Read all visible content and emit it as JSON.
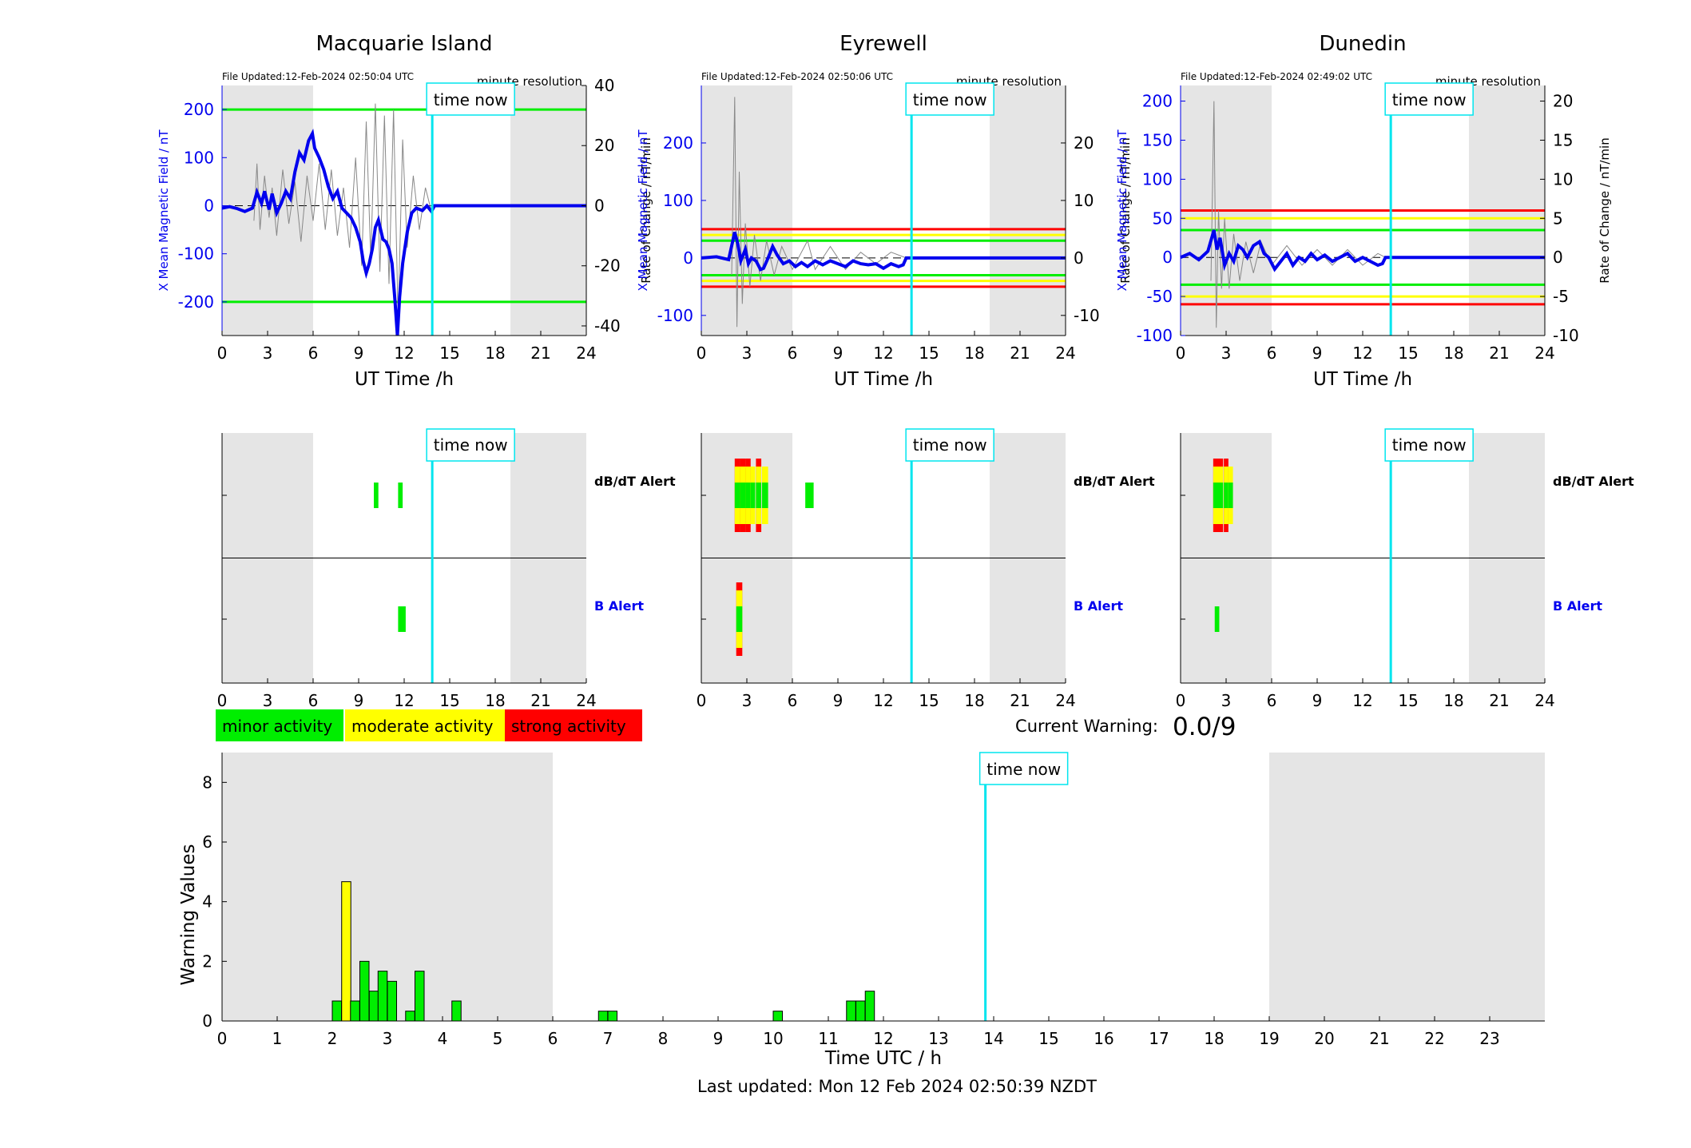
{
  "time_now_label": "time now",
  "time_now_hour": 13.85,
  "ut_axis_ticks": [
    0,
    3,
    6,
    9,
    12,
    15,
    18,
    21,
    24
  ],
  "stations": [
    {
      "name": "Macquarie Island",
      "file_updated": "File Updated:12-Feb-2024 02:50:04 UTC",
      "resolution": "minute resolution",
      "ylabel_left": "X Mean Magnetic Field / nT",
      "ylabel_right": "Rate of Change / nT/min",
      "xlabel": "UT Time /h",
      "ylim_left": [
        -270,
        250
      ],
      "ylim_right": [
        -43.2,
        40
      ],
      "left_ticks": [
        -200,
        -100,
        0,
        100,
        200
      ],
      "right_ticks": [
        -40,
        -20,
        0,
        20,
        40
      ],
      "shaded_hours": [
        [
          0,
          6
        ],
        [
          19,
          24
        ]
      ],
      "threshold_lines": [
        {
          "value": 200,
          "color": "#00ee00"
        },
        {
          "value": -200,
          "color": "#00ee00"
        }
      ],
      "field_series": [
        [
          0,
          -5
        ],
        [
          0.5,
          -2
        ],
        [
          1,
          -6
        ],
        [
          1.5,
          -12
        ],
        [
          2,
          -5
        ],
        [
          2.3,
          28
        ],
        [
          2.6,
          5
        ],
        [
          2.8,
          30
        ],
        [
          3.1,
          -8
        ],
        [
          3.3,
          25
        ],
        [
          3.6,
          -15
        ],
        [
          3.9,
          5
        ],
        [
          4.2,
          30
        ],
        [
          4.5,
          15
        ],
        [
          4.8,
          70
        ],
        [
          5.1,
          110
        ],
        [
          5.4,
          95
        ],
        [
          5.7,
          135
        ],
        [
          5.95,
          150
        ],
        [
          6.1,
          120
        ],
        [
          6.4,
          100
        ],
        [
          6.7,
          75
        ],
        [
          7,
          40
        ],
        [
          7.3,
          15
        ],
        [
          7.6,
          30
        ],
        [
          7.9,
          -5
        ],
        [
          8.2,
          -15
        ],
        [
          8.5,
          -25
        ],
        [
          8.8,
          -45
        ],
        [
          9.1,
          -75
        ],
        [
          9.3,
          -115
        ],
        [
          9.5,
          -140
        ],
        [
          9.7,
          -120
        ],
        [
          9.9,
          -90
        ],
        [
          10.1,
          -45
        ],
        [
          10.3,
          -30
        ],
        [
          10.6,
          -70
        ],
        [
          10.8,
          -75
        ],
        [
          11,
          -90
        ],
        [
          11.2,
          -120
        ],
        [
          11.4,
          -200
        ],
        [
          11.55,
          -270
        ],
        [
          11.7,
          -190
        ],
        [
          11.9,
          -120
        ],
        [
          12.2,
          -55
        ],
        [
          12.5,
          -15
        ],
        [
          12.8,
          -5
        ],
        [
          13.2,
          -10
        ],
        [
          13.5,
          0
        ],
        [
          13.8,
          -12
        ],
        [
          14,
          0
        ],
        [
          24,
          0
        ]
      ],
      "rate_series": [
        [
          2.1,
          -5
        ],
        [
          2.3,
          14
        ],
        [
          2.5,
          -8
        ],
        [
          2.8,
          10
        ],
        [
          3.1,
          -4
        ],
        [
          3.3,
          6
        ],
        [
          3.6,
          -10
        ],
        [
          4,
          12
        ],
        [
          4.4,
          -6
        ],
        [
          4.8,
          8
        ],
        [
          5.2,
          -12
        ],
        [
          5.6,
          10
        ],
        [
          6,
          -5
        ],
        [
          6.4,
          14
        ],
        [
          6.8,
          -8
        ],
        [
          7.2,
          12
        ],
        [
          7.6,
          -10
        ],
        [
          8,
          6
        ],
        [
          8.4,
          -14
        ],
        [
          8.8,
          16
        ],
        [
          9.2,
          -20
        ],
        [
          9.5,
          28
        ],
        [
          9.8,
          -18
        ],
        [
          10.1,
          34
        ],
        [
          10.4,
          -22
        ],
        [
          10.7,
          30
        ],
        [
          11,
          -26
        ],
        [
          11.3,
          32
        ],
        [
          11.6,
          -38
        ],
        [
          11.9,
          22
        ],
        [
          12.2,
          -14
        ],
        [
          12.6,
          10
        ],
        [
          13,
          -8
        ],
        [
          13.4,
          6
        ],
        [
          13.8,
          -2
        ]
      ],
      "alerts": {
        "dbdt": [
          {
            "hour": 10.0,
            "width": 0.3,
            "levels": [
              "minor"
            ]
          },
          {
            "hour": 11.6,
            "width": 0.3,
            "levels": [
              "minor"
            ]
          }
        ],
        "b": [
          {
            "hour": 11.6,
            "width": 0.5,
            "levels": [
              "minor"
            ]
          }
        ]
      },
      "alert_labels": {
        "dbdt": "dB/dT Alert",
        "b": "B Alert"
      }
    },
    {
      "name": "Eyrewell",
      "file_updated": "File Updated:12-Feb-2024 02:50:06 UTC",
      "resolution": "minute resolution",
      "ylabel_left": "X Mean Magnetic Field / nT",
      "ylabel_right": "Rate of Change / nT/min",
      "xlabel": "UT Time /h",
      "ylim_left": [
        -135,
        300
      ],
      "ylim_right": [
        -13.5,
        30
      ],
      "left_ticks": [
        -100,
        0,
        100,
        200
      ],
      "right_ticks": [
        -10,
        0,
        10,
        20
      ],
      "shaded_hours": [
        [
          0,
          6
        ],
        [
          19,
          24
        ]
      ],
      "threshold_lines": [
        {
          "value": 50,
          "color": "#ff0000"
        },
        {
          "value": 40,
          "color": "#ffff00"
        },
        {
          "value": 30,
          "color": "#00ee00"
        },
        {
          "value": -30,
          "color": "#00ee00"
        },
        {
          "value": -40,
          "color": "#ffff00"
        },
        {
          "value": -50,
          "color": "#ff0000"
        }
      ],
      "field_series": [
        [
          0,
          0
        ],
        [
          1,
          2
        ],
        [
          1.8,
          -3
        ],
        [
          2.2,
          45
        ],
        [
          2.4,
          25
        ],
        [
          2.6,
          -5
        ],
        [
          2.9,
          15
        ],
        [
          3.1,
          -10
        ],
        [
          3.3,
          0
        ],
        [
          3.6,
          -5
        ],
        [
          3.9,
          -20
        ],
        [
          4.1,
          -18
        ],
        [
          4.4,
          0
        ],
        [
          4.7,
          20
        ],
        [
          5,
          5
        ],
        [
          5.4,
          -10
        ],
        [
          5.8,
          -5
        ],
        [
          6.2,
          -15
        ],
        [
          6.6,
          -8
        ],
        [
          7,
          -15
        ],
        [
          7.5,
          -5
        ],
        [
          8,
          -12
        ],
        [
          8.5,
          -5
        ],
        [
          9,
          -10
        ],
        [
          9.5,
          -15
        ],
        [
          10,
          -5
        ],
        [
          10.5,
          -10
        ],
        [
          11,
          -12
        ],
        [
          11.5,
          -10
        ],
        [
          12,
          -18
        ],
        [
          12.5,
          -10
        ],
        [
          13,
          -15
        ],
        [
          13.3,
          -12
        ],
        [
          13.5,
          0
        ],
        [
          24,
          0
        ]
      ],
      "rate_series": [
        [
          2.0,
          -3
        ],
        [
          2.2,
          28
        ],
        [
          2.35,
          -12
        ],
        [
          2.5,
          15
        ],
        [
          2.7,
          -8
        ],
        [
          2.9,
          6
        ],
        [
          3.2,
          -5
        ],
        [
          3.5,
          4
        ],
        [
          3.9,
          -4
        ],
        [
          4.3,
          3
        ],
        [
          4.8,
          -3
        ],
        [
          5.3,
          2
        ],
        [
          6,
          -2
        ],
        [
          7,
          3
        ],
        [
          7.5,
          -2
        ],
        [
          8.5,
          2
        ],
        [
          9.5,
          -2
        ],
        [
          10.5,
          1
        ],
        [
          11.5,
          -1
        ],
        [
          12.5,
          1
        ],
        [
          13.5,
          0
        ]
      ],
      "alerts": {
        "dbdt": [
          {
            "hour": 2.2,
            "width": 0.35,
            "levels": [
              "minor",
              "moderate",
              "strong"
            ]
          },
          {
            "hour": 2.55,
            "width": 0.35,
            "levels": [
              "minor",
              "moderate",
              "strong"
            ]
          },
          {
            "hour": 2.9,
            "width": 0.35,
            "levels": [
              "minor",
              "moderate",
              "strong"
            ]
          },
          {
            "hour": 3.25,
            "width": 0.3,
            "levels": [
              "minor",
              "moderate"
            ]
          },
          {
            "hour": 3.6,
            "width": 0.35,
            "levels": [
              "minor",
              "moderate",
              "strong"
            ]
          },
          {
            "hour": 4.0,
            "width": 0.4,
            "levels": [
              "minor",
              "moderate"
            ]
          },
          {
            "hour": 6.85,
            "width": 0.55,
            "levels": [
              "minor"
            ]
          }
        ],
        "b": [
          {
            "hour": 2.3,
            "width": 0.4,
            "levels": [
              "minor",
              "moderate",
              "strong"
            ]
          }
        ]
      },
      "alert_labels": {
        "dbdt": "dB/dT Alert",
        "b": "B Alert"
      }
    },
    {
      "name": "Dunedin",
      "file_updated": "File Updated:12-Feb-2024 02:49:02 UTC",
      "resolution": "minute resolution",
      "ylabel_left": "X Mean Magnetic Field / nT",
      "ylabel_right": "Rate of Change / nT/min",
      "xlabel": "UT Time /h",
      "ylim_left": [
        -100,
        220
      ],
      "ylim_right": [
        -10,
        22
      ],
      "left_ticks": [
        -100,
        -50,
        0,
        50,
        100,
        150,
        200
      ],
      "right_ticks": [
        -10,
        -5,
        0,
        5,
        10,
        15,
        20
      ],
      "shaded_hours": [
        [
          0,
          6
        ],
        [
          19,
          24
        ]
      ],
      "threshold_lines": [
        {
          "value": 60,
          "color": "#ff0000"
        },
        {
          "value": 50,
          "color": "#ffff00"
        },
        {
          "value": 35,
          "color": "#00ee00"
        },
        {
          "value": -35,
          "color": "#00ee00"
        },
        {
          "value": -50,
          "color": "#ffff00"
        },
        {
          "value": -60,
          "color": "#ff0000"
        }
      ],
      "field_series": [
        [
          0,
          0
        ],
        [
          0.6,
          5
        ],
        [
          1.2,
          -3
        ],
        [
          1.8,
          8
        ],
        [
          2.2,
          35
        ],
        [
          2.4,
          10
        ],
        [
          2.6,
          25
        ],
        [
          2.9,
          -10
        ],
        [
          3.2,
          5
        ],
        [
          3.5,
          -5
        ],
        [
          3.8,
          15
        ],
        [
          4.1,
          10
        ],
        [
          4.4,
          0
        ],
        [
          4.8,
          15
        ],
        [
          5.2,
          20
        ],
        [
          5.5,
          5
        ],
        [
          5.8,
          0
        ],
        [
          6.2,
          -15
        ],
        [
          6.6,
          -5
        ],
        [
          7,
          5
        ],
        [
          7.4,
          -10
        ],
        [
          7.8,
          0
        ],
        [
          8.2,
          -5
        ],
        [
          8.6,
          5
        ],
        [
          9,
          -3
        ],
        [
          9.5,
          3
        ],
        [
          10,
          -5
        ],
        [
          10.5,
          0
        ],
        [
          11,
          5
        ],
        [
          11.5,
          -5
        ],
        [
          12,
          0
        ],
        [
          12.5,
          -5
        ],
        [
          13,
          -10
        ],
        [
          13.3,
          -8
        ],
        [
          13.5,
          0
        ],
        [
          24,
          0
        ]
      ],
      "rate_series": [
        [
          2.0,
          -3
        ],
        [
          2.2,
          20
        ],
        [
          2.35,
          -9
        ],
        [
          2.5,
          6
        ],
        [
          2.7,
          -4
        ],
        [
          2.9,
          5
        ],
        [
          3.2,
          -4
        ],
        [
          3.5,
          3
        ],
        [
          3.9,
          -3
        ],
        [
          4.3,
          2
        ],
        [
          4.8,
          -2
        ],
        [
          5.3,
          2
        ],
        [
          6,
          -1
        ],
        [
          7,
          1.5
        ],
        [
          8,
          -1
        ],
        [
          9,
          1
        ],
        [
          10,
          -1
        ],
        [
          11,
          1
        ],
        [
          12,
          -1
        ],
        [
          13,
          0.5
        ],
        [
          13.5,
          0
        ]
      ],
      "alerts": {
        "dbdt": [
          {
            "hour": 2.15,
            "width": 0.35,
            "levels": [
              "minor",
              "moderate",
              "strong"
            ]
          },
          {
            "hour": 2.5,
            "width": 0.3,
            "levels": [
              "minor",
              "moderate",
              "strong"
            ]
          },
          {
            "hour": 2.85,
            "width": 0.3,
            "levels": [
              "minor",
              "moderate",
              "strong"
            ]
          },
          {
            "hour": 3.15,
            "width": 0.3,
            "levels": [
              "minor",
              "moderate"
            ]
          }
        ],
        "b": [
          {
            "hour": 2.25,
            "width": 0.3,
            "levels": [
              "minor"
            ]
          }
        ]
      },
      "alert_labels": {
        "dbdt": "dB/dT Alert",
        "b": "B Alert"
      }
    }
  ],
  "legend": [
    {
      "label": "minor activity",
      "color": "#00ee00"
    },
    {
      "label": "moderate activity",
      "color": "#ffff00"
    },
    {
      "label": "strong activity",
      "color": "#ff0000"
    }
  ],
  "current_warning": {
    "label": "Current Warning:",
    "value": "0.0/9"
  },
  "chart_data": {
    "type": "bar",
    "xlabel": "Time UTC / h",
    "ylabel": "Warning Values",
    "xlim": [
      0,
      24
    ],
    "ylim": [
      0,
      9
    ],
    "x_ticks": [
      0,
      1,
      2,
      3,
      4,
      5,
      6,
      7,
      8,
      9,
      10,
      11,
      12,
      13,
      14,
      15,
      16,
      17,
      18,
      19,
      20,
      21,
      22,
      23
    ],
    "y_ticks": [
      0,
      2,
      4,
      6,
      8
    ],
    "shaded_hours": [
      [
        0,
        6
      ],
      [
        19,
        24
      ]
    ],
    "bar_width_hours": 0.1667,
    "bars": [
      {
        "x": 2.0,
        "value": 0.67,
        "level": "minor"
      },
      {
        "x": 2.17,
        "value": 4.67,
        "level": "moderate"
      },
      {
        "x": 2.33,
        "value": 0.67,
        "level": "minor"
      },
      {
        "x": 2.5,
        "value": 2.0,
        "level": "minor"
      },
      {
        "x": 2.67,
        "value": 1.0,
        "level": "minor"
      },
      {
        "x": 2.83,
        "value": 1.67,
        "level": "minor"
      },
      {
        "x": 3.0,
        "value": 1.33,
        "level": "minor"
      },
      {
        "x": 3.33,
        "value": 0.33,
        "level": "minor"
      },
      {
        "x": 3.5,
        "value": 1.67,
        "level": "minor"
      },
      {
        "x": 4.17,
        "value": 0.67,
        "level": "minor"
      },
      {
        "x": 6.83,
        "value": 0.33,
        "level": "minor"
      },
      {
        "x": 7.0,
        "value": 0.33,
        "level": "minor"
      },
      {
        "x": 10.0,
        "value": 0.33,
        "level": "minor"
      },
      {
        "x": 11.33,
        "value": 0.67,
        "level": "minor"
      },
      {
        "x": 11.5,
        "value": 0.67,
        "level": "minor"
      },
      {
        "x": 11.67,
        "value": 1.0,
        "level": "minor"
      }
    ]
  },
  "footer": "Last updated: Mon 12 Feb 2024 02:50:39 NZDT",
  "colors": {
    "minor": "#00ee00",
    "moderate": "#ffff00",
    "strong": "#ff0000",
    "shade": "#e5e5e5",
    "time_now": "#00e5ee",
    "field_line": "#0000ee",
    "left_axis": "#0000ee"
  }
}
